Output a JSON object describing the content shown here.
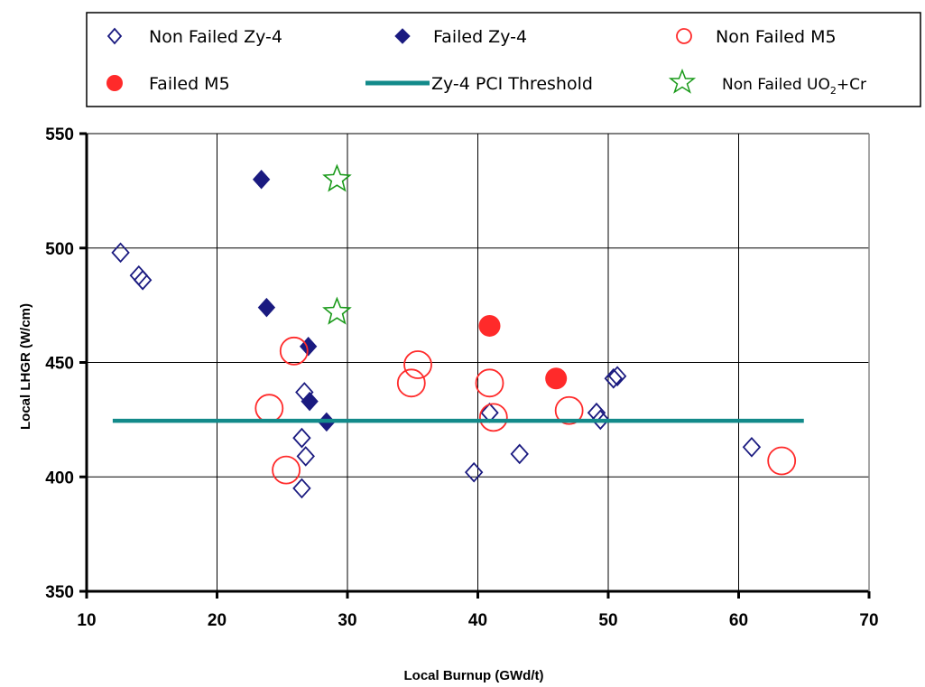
{
  "chart_data": {
    "type": "scatter",
    "xlabel": "Local Burnup (GWd/t)",
    "ylabel": "Local LHGR (W/cm)",
    "xlim": [
      10,
      70
    ],
    "ylim": [
      350,
      550
    ],
    "xticks": [
      "10",
      "20",
      "30",
      "40",
      "50",
      "60",
      "70"
    ],
    "yticks": [
      "350",
      "400",
      "450",
      "500",
      "550"
    ],
    "grid": true,
    "legend_position": "top",
    "series": [
      {
        "name": "Non Failed Zy-4",
        "marker": "diamond-open",
        "color": "#1a1a80",
        "points": [
          [
            12.6,
            498
          ],
          [
            14,
            488
          ],
          [
            14.3,
            486
          ],
          [
            26.5,
            417
          ],
          [
            26.5,
            395
          ],
          [
            26.7,
            437
          ],
          [
            26.8,
            409
          ],
          [
            39.7,
            402
          ],
          [
            40.9,
            428
          ],
          [
            43.2,
            410
          ],
          [
            49.1,
            428
          ],
          [
            49.4,
            425
          ],
          [
            50.4,
            443
          ],
          [
            50.7,
            444
          ],
          [
            61,
            413
          ]
        ]
      },
      {
        "name": "Failed Zy-4",
        "marker": "diamond-filled",
        "color": "#1a1a80",
        "points": [
          [
            23.4,
            530
          ],
          [
            23.8,
            474
          ],
          [
            27,
            457
          ],
          [
            27.1,
            433
          ],
          [
            28.4,
            424
          ]
        ]
      },
      {
        "name": "Non Failed M5",
        "marker": "circle-open",
        "color": "#ff2a2a",
        "points": [
          [
            24,
            430
          ],
          [
            25.3,
            403
          ],
          [
            25.9,
            455
          ],
          [
            34.9,
            441
          ],
          [
            35.4,
            449
          ],
          [
            40.9,
            441
          ],
          [
            41.2,
            426
          ],
          [
            47,
            429
          ],
          [
            63.3,
            407
          ]
        ]
      },
      {
        "name": "Failed M5",
        "marker": "circle-filled",
        "color": "#ff2a2a",
        "points": [
          [
            40.9,
            466
          ],
          [
            46,
            443
          ]
        ]
      },
      {
        "name": "Zy-4 PCI Threshold",
        "marker": "line",
        "color": "#128a8a",
        "points": [
          [
            12,
            424.5
          ],
          [
            65,
            424.5
          ]
        ]
      },
      {
        "name": "Non Failed UO",
        "name_sub": "2",
        "name_tail": "+Cr",
        "marker": "star-open",
        "color": "#1a9a1a",
        "points": [
          [
            29.2,
            530
          ],
          [
            29.2,
            472
          ]
        ]
      }
    ]
  },
  "legend": {
    "items": [
      {
        "label": "Non Failed Zy-4"
      },
      {
        "label": "Failed Zy-4"
      },
      {
        "label": "Non Failed M5"
      },
      {
        "label": "Failed M5"
      },
      {
        "label": "Zy-4 PCI Threshold"
      },
      {
        "label": "Non Failed UO",
        "sub": "2",
        "tail": "+Cr"
      }
    ]
  }
}
